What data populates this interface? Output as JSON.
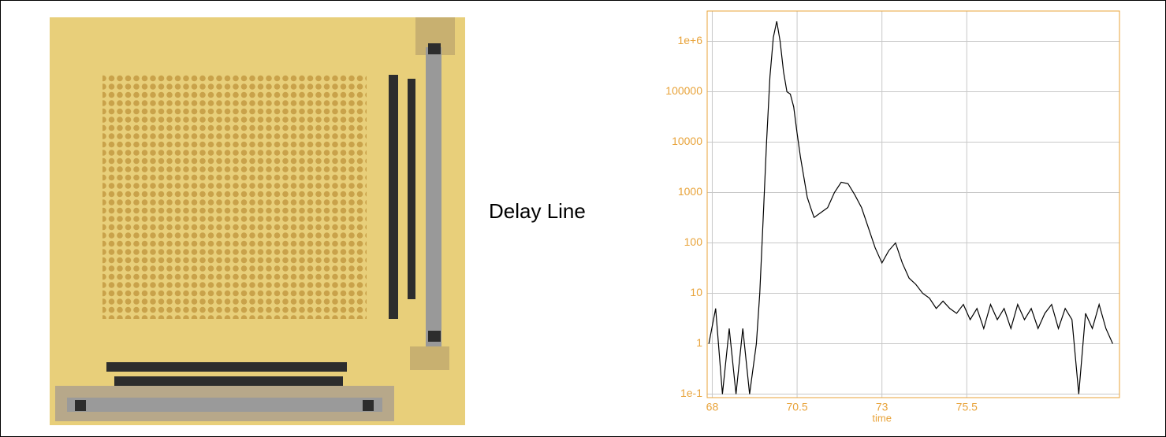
{
  "caption": "Delay Line",
  "chart_data": {
    "type": "line",
    "yscale": "log",
    "x_label": "time",
    "x": [
      67.9,
      68.1,
      68.3,
      68.5,
      68.7,
      68.9,
      69.1,
      69.3,
      69.4,
      69.5,
      69.6,
      69.7,
      69.8,
      69.9,
      70.0,
      70.1,
      70.2,
      70.3,
      70.4,
      70.5,
      70.6,
      70.7,
      70.8,
      70.9,
      71.0,
      71.2,
      71.4,
      71.6,
      71.8,
      72.0,
      72.2,
      72.4,
      72.6,
      72.8,
      73.0,
      73.2,
      73.4,
      73.6,
      73.8,
      74.0,
      74.2,
      74.4,
      74.6,
      74.8,
      75.0,
      75.2,
      75.4,
      75.6,
      75.8,
      76.0,
      76.2,
      76.4,
      76.6,
      76.8,
      77.0,
      77.2,
      77.4,
      77.6,
      77.8,
      78.0,
      78.2,
      78.4,
      78.6,
      78.8,
      79.0,
      79.2,
      79.4,
      79.6,
      79.8
    ],
    "series": [
      {
        "color": "#000000",
        "values": [
          1,
          5,
          0.1,
          2,
          0.1,
          2,
          0.1,
          1,
          10,
          300,
          10000,
          200000,
          1200000,
          2500000,
          1000000,
          250000,
          100000,
          90000,
          50000,
          15000,
          5000,
          2000,
          800,
          500,
          320,
          400,
          500,
          1000,
          1600,
          1500,
          900,
          500,
          200,
          80,
          40,
          70,
          100,
          40,
          20,
          15,
          10,
          8,
          5,
          7,
          5,
          4,
          6,
          3,
          5,
          2,
          6,
          3,
          5,
          2,
          6,
          3,
          5,
          2,
          4,
          6,
          2,
          5,
          3,
          0.1,
          4,
          2,
          6,
          2,
          1
        ]
      }
    ],
    "xlim": [
      67.85,
      80
    ],
    "xticks": [
      68,
      70.5,
      73,
      75.5
    ],
    "ylim": [
      0.085,
      4000000
    ],
    "yticks": [
      {
        "value": 0.1,
        "label": "1e-1"
      },
      1,
      10,
      100,
      1000,
      10000,
      100000,
      {
        "value": 1000000,
        "label": "1e+6"
      }
    ],
    "grid": true,
    "axis_color": "#e8a33a",
    "grid_color": "#c8c8c8"
  }
}
